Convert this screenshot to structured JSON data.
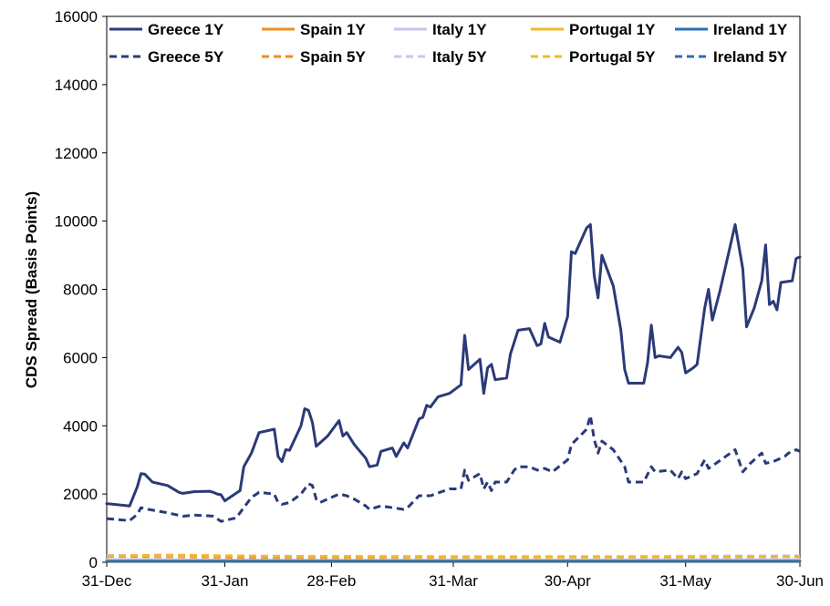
{
  "chart_data": {
    "type": "line",
    "title": "",
    "xlabel": "",
    "ylabel": "CDS Spread (Basis Points)",
    "ylim": [
      0,
      16000
    ],
    "yticks": [
      0,
      2000,
      4000,
      6000,
      8000,
      10000,
      12000,
      14000,
      16000
    ],
    "xlim": [
      "2011-12-31",
      "2012-06-30"
    ],
    "xticks": [
      {
        "date": "2011-12-31",
        "label": "31-Dec"
      },
      {
        "date": "2012-01-31",
        "label": "31-Jan"
      },
      {
        "date": "2012-02-28",
        "label": "28-Feb"
      },
      {
        "date": "2012-03-31",
        "label": "31-Mar"
      },
      {
        "date": "2012-04-30",
        "label": "30-Apr"
      },
      {
        "date": "2012-05-31",
        "label": "31-May"
      },
      {
        "date": "2012-06-30",
        "label": "30-Jun"
      }
    ],
    "legend_position": "top",
    "grid": false,
    "series": [
      {
        "name": "Greece 1Y",
        "color": "#2b3a78",
        "dash": "solid",
        "points": [
          [
            "2011-12-31",
            1720
          ],
          [
            "2012-01-06",
            1650
          ],
          [
            "2012-01-08",
            2200
          ],
          [
            "2012-01-09",
            2600
          ],
          [
            "2012-01-10",
            2580
          ],
          [
            "2012-01-12",
            2350
          ],
          [
            "2012-01-16",
            2250
          ],
          [
            "2012-01-19",
            2050
          ],
          [
            "2012-01-20",
            2020
          ],
          [
            "2012-01-23",
            2070
          ],
          [
            "2012-01-27",
            2080
          ],
          [
            "2012-01-28",
            2050
          ],
          [
            "2012-01-29",
            2000
          ],
          [
            "2012-01-30",
            1980
          ],
          [
            "2012-01-31",
            1800
          ],
          [
            "2012-02-02",
            1950
          ],
          [
            "2012-02-04",
            2100
          ],
          [
            "2012-02-05",
            2800
          ],
          [
            "2012-02-07",
            3200
          ],
          [
            "2012-02-09",
            3800
          ],
          [
            "2012-02-13",
            3900
          ],
          [
            "2012-02-14",
            3100
          ],
          [
            "2012-02-15",
            2950
          ],
          [
            "2012-02-16",
            3300
          ],
          [
            "2012-02-17",
            3280
          ],
          [
            "2012-02-20",
            4000
          ],
          [
            "2012-02-21",
            4500
          ],
          [
            "2012-02-22",
            4450
          ],
          [
            "2012-02-23",
            4100
          ],
          [
            "2012-02-24",
            3400
          ],
          [
            "2012-02-27",
            3700
          ],
          [
            "2012-03-01",
            4150
          ],
          [
            "2012-03-02",
            3700
          ],
          [
            "2012-03-03",
            3800
          ],
          [
            "2012-03-05",
            3450
          ],
          [
            "2012-03-08",
            3050
          ],
          [
            "2012-03-09",
            2800
          ],
          [
            "2012-03-11",
            2850
          ],
          [
            "2012-03-12",
            3250
          ],
          [
            "2012-03-15",
            3350
          ],
          [
            "2012-03-16",
            3100
          ],
          [
            "2012-03-17",
            3300
          ],
          [
            "2012-03-18",
            3500
          ],
          [
            "2012-03-19",
            3350
          ],
          [
            "2012-03-22",
            4200
          ],
          [
            "2012-03-23",
            4250
          ],
          [
            "2012-03-24",
            4600
          ],
          [
            "2012-03-25",
            4550
          ],
          [
            "2012-03-27",
            4850
          ],
          [
            "2012-03-30",
            4950
          ],
          [
            "2012-04-02",
            5200
          ],
          [
            "2012-04-03",
            6650
          ],
          [
            "2012-04-04",
            5650
          ],
          [
            "2012-04-07",
            5950
          ],
          [
            "2012-04-08",
            4950
          ],
          [
            "2012-04-09",
            5700
          ],
          [
            "2012-04-10",
            5800
          ],
          [
            "2012-04-11",
            5350
          ],
          [
            "2012-04-14",
            5400
          ],
          [
            "2012-04-15",
            6100
          ],
          [
            "2012-04-17",
            6800
          ],
          [
            "2012-04-20",
            6850
          ],
          [
            "2012-04-22",
            6350
          ],
          [
            "2012-04-23",
            6400
          ],
          [
            "2012-04-24",
            7000
          ],
          [
            "2012-04-25",
            6600
          ],
          [
            "2012-04-28",
            6450
          ],
          [
            "2012-04-30",
            7200
          ],
          [
            "2012-05-01",
            9100
          ],
          [
            "2012-05-02",
            9050
          ],
          [
            "2012-05-05",
            9800
          ],
          [
            "2012-05-06",
            9900
          ],
          [
            "2012-05-07",
            8400
          ],
          [
            "2012-05-08",
            7750
          ],
          [
            "2012-05-09",
            9000
          ],
          [
            "2012-05-12",
            8100
          ],
          [
            "2012-05-14",
            6800
          ],
          [
            "2012-05-15",
            5650
          ],
          [
            "2012-05-16",
            5250
          ],
          [
            "2012-05-20",
            5250
          ],
          [
            "2012-05-21",
            5850
          ],
          [
            "2012-05-22",
            6950
          ],
          [
            "2012-05-23",
            6000
          ],
          [
            "2012-05-24",
            6050
          ],
          [
            "2012-05-27",
            6000
          ],
          [
            "2012-05-29",
            6300
          ],
          [
            "2012-05-30",
            6150
          ],
          [
            "2012-05-31",
            5550
          ],
          [
            "2012-06-02",
            5700
          ],
          [
            "2012-06-03",
            5800
          ],
          [
            "2012-06-05",
            7450
          ],
          [
            "2012-06-06",
            8000
          ],
          [
            "2012-06-07",
            7100
          ],
          [
            "2012-06-09",
            7950
          ],
          [
            "2012-06-13",
            9900
          ],
          [
            "2012-06-15",
            8600
          ],
          [
            "2012-06-16",
            6900
          ],
          [
            "2012-06-18",
            7450
          ],
          [
            "2012-06-20",
            8250
          ],
          [
            "2012-06-21",
            9300
          ],
          [
            "2012-06-22",
            7550
          ],
          [
            "2012-06-23",
            7650
          ],
          [
            "2012-06-24",
            7400
          ],
          [
            "2012-06-25",
            8200
          ],
          [
            "2012-06-28",
            8250
          ],
          [
            "2012-06-29",
            8900
          ],
          [
            "2012-06-30",
            8950
          ]
        ]
      },
      {
        "name": "Spain 1Y",
        "color": "#f08c1e",
        "dash": "solid",
        "points": [
          [
            "2011-12-31",
            60
          ],
          [
            "2012-02-15",
            50
          ],
          [
            "2012-03-31",
            60
          ],
          [
            "2012-05-15",
            60
          ],
          [
            "2012-06-30",
            70
          ]
        ]
      },
      {
        "name": "Italy 1Y",
        "color": "#c9c6ea",
        "dash": "solid",
        "points": [
          [
            "2011-12-31",
            80
          ],
          [
            "2012-02-15",
            60
          ],
          [
            "2012-03-31",
            60
          ],
          [
            "2012-05-15",
            70
          ],
          [
            "2012-06-30",
            80
          ]
        ]
      },
      {
        "name": "Portugal 1Y",
        "color": "#f2b827",
        "dash": "solid",
        "points": [
          [
            "2011-12-31",
            40
          ],
          [
            "2012-02-15",
            40
          ],
          [
            "2012-03-31",
            40
          ],
          [
            "2012-05-15",
            40
          ],
          [
            "2012-06-30",
            40
          ]
        ]
      },
      {
        "name": "Ireland 1Y",
        "color": "#2a6fb8",
        "dash": "solid",
        "points": [
          [
            "2011-12-31",
            30
          ],
          [
            "2012-02-15",
            30
          ],
          [
            "2012-03-31",
            30
          ],
          [
            "2012-05-15",
            30
          ],
          [
            "2012-06-30",
            30
          ]
        ]
      },
      {
        "name": "Greece 5Y",
        "color": "#2b3a78",
        "dash": "dashed",
        "points": [
          [
            "2011-12-31",
            1280
          ],
          [
            "2012-01-06",
            1220
          ],
          [
            "2012-01-08",
            1400
          ],
          [
            "2012-01-09",
            1600
          ],
          [
            "2012-01-11",
            1550
          ],
          [
            "2012-01-16",
            1450
          ],
          [
            "2012-01-20",
            1350
          ],
          [
            "2012-01-23",
            1380
          ],
          [
            "2012-01-27",
            1360
          ],
          [
            "2012-01-28",
            1350
          ],
          [
            "2012-01-30",
            1200
          ],
          [
            "2012-02-03",
            1300
          ],
          [
            "2012-02-05",
            1600
          ],
          [
            "2012-02-07",
            1900
          ],
          [
            "2012-02-09",
            2050
          ],
          [
            "2012-02-13",
            2000
          ],
          [
            "2012-02-14",
            1750
          ],
          [
            "2012-02-15",
            1700
          ],
          [
            "2012-02-17",
            1750
          ],
          [
            "2012-02-20",
            2000
          ],
          [
            "2012-02-22",
            2300
          ],
          [
            "2012-02-23",
            2250
          ],
          [
            "2012-02-24",
            1850
          ],
          [
            "2012-02-25",
            1750
          ],
          [
            "2012-03-01",
            2000
          ],
          [
            "2012-03-03",
            1950
          ],
          [
            "2012-03-05",
            1850
          ],
          [
            "2012-03-08",
            1650
          ],
          [
            "2012-03-09",
            1550
          ],
          [
            "2012-03-12",
            1650
          ],
          [
            "2012-03-15",
            1600
          ],
          [
            "2012-03-18",
            1550
          ],
          [
            "2012-03-19",
            1600
          ],
          [
            "2012-03-22",
            1950
          ],
          [
            "2012-03-25",
            1950
          ],
          [
            "2012-03-30",
            2150
          ],
          [
            "2012-04-02",
            2150
          ],
          [
            "2012-04-03",
            2700
          ],
          [
            "2012-04-04",
            2400
          ],
          [
            "2012-04-07",
            2600
          ],
          [
            "2012-04-08",
            2150
          ],
          [
            "2012-04-09",
            2350
          ],
          [
            "2012-04-10",
            2100
          ],
          [
            "2012-04-11",
            2350
          ],
          [
            "2012-04-14",
            2350
          ],
          [
            "2012-04-16",
            2700
          ],
          [
            "2012-04-17",
            2800
          ],
          [
            "2012-04-20",
            2800
          ],
          [
            "2012-04-22",
            2700
          ],
          [
            "2012-04-24",
            2750
          ],
          [
            "2012-04-26",
            2650
          ],
          [
            "2012-04-30",
            3000
          ],
          [
            "2012-05-01",
            3450
          ],
          [
            "2012-05-05",
            3900
          ],
          [
            "2012-05-06",
            4300
          ],
          [
            "2012-05-07",
            3600
          ],
          [
            "2012-05-08",
            3200
          ],
          [
            "2012-05-09",
            3550
          ],
          [
            "2012-05-12",
            3300
          ],
          [
            "2012-05-15",
            2800
          ],
          [
            "2012-05-16",
            2350
          ],
          [
            "2012-05-20",
            2350
          ],
          [
            "2012-05-22",
            2800
          ],
          [
            "2012-05-23",
            2650
          ],
          [
            "2012-05-27",
            2700
          ],
          [
            "2012-05-29",
            2450
          ],
          [
            "2012-05-30",
            2650
          ],
          [
            "2012-05-31",
            2450
          ],
          [
            "2012-06-03",
            2600
          ],
          [
            "2012-06-05",
            3000
          ],
          [
            "2012-06-06",
            2750
          ],
          [
            "2012-06-08",
            2900
          ],
          [
            "2012-06-13",
            3300
          ],
          [
            "2012-06-15",
            2650
          ],
          [
            "2012-06-17",
            2900
          ],
          [
            "2012-06-20",
            3200
          ],
          [
            "2012-06-21",
            2900
          ],
          [
            "2012-06-23",
            2950
          ],
          [
            "2012-06-26",
            3100
          ],
          [
            "2012-06-27",
            3200
          ],
          [
            "2012-06-29",
            3300
          ],
          [
            "2012-06-30",
            3250
          ]
        ]
      },
      {
        "name": "Spain 5Y",
        "color": "#f08c1e",
        "dash": "dashed",
        "points": [
          [
            "2011-12-31",
            170
          ],
          [
            "2012-02-15",
            140
          ],
          [
            "2012-03-31",
            150
          ],
          [
            "2012-05-15",
            160
          ],
          [
            "2012-06-30",
            170
          ]
        ]
      },
      {
        "name": "Italy 5Y",
        "color": "#c9c6ea",
        "dash": "dashed",
        "points": [
          [
            "2011-12-31",
            200
          ],
          [
            "2012-02-15",
            180
          ],
          [
            "2012-03-31",
            170
          ],
          [
            "2012-05-15",
            170
          ],
          [
            "2012-06-30",
            190
          ]
        ]
      },
      {
        "name": "Portugal 5Y",
        "color": "#f2b827",
        "dash": "dashed",
        "points": [
          [
            "2011-12-31",
            180
          ],
          [
            "2012-01-15",
            210
          ],
          [
            "2012-02-15",
            170
          ],
          [
            "2012-03-31",
            150
          ],
          [
            "2012-05-15",
            150
          ],
          [
            "2012-06-30",
            170
          ]
        ]
      },
      {
        "name": "Ireland 5Y",
        "color": "#2a6fb8",
        "dash": "dashed",
        "points": [
          [
            "2011-12-31",
            70
          ],
          [
            "2012-02-15",
            60
          ],
          [
            "2012-03-31",
            60
          ],
          [
            "2012-05-15",
            70
          ],
          [
            "2012-06-30",
            80
          ]
        ]
      }
    ]
  }
}
